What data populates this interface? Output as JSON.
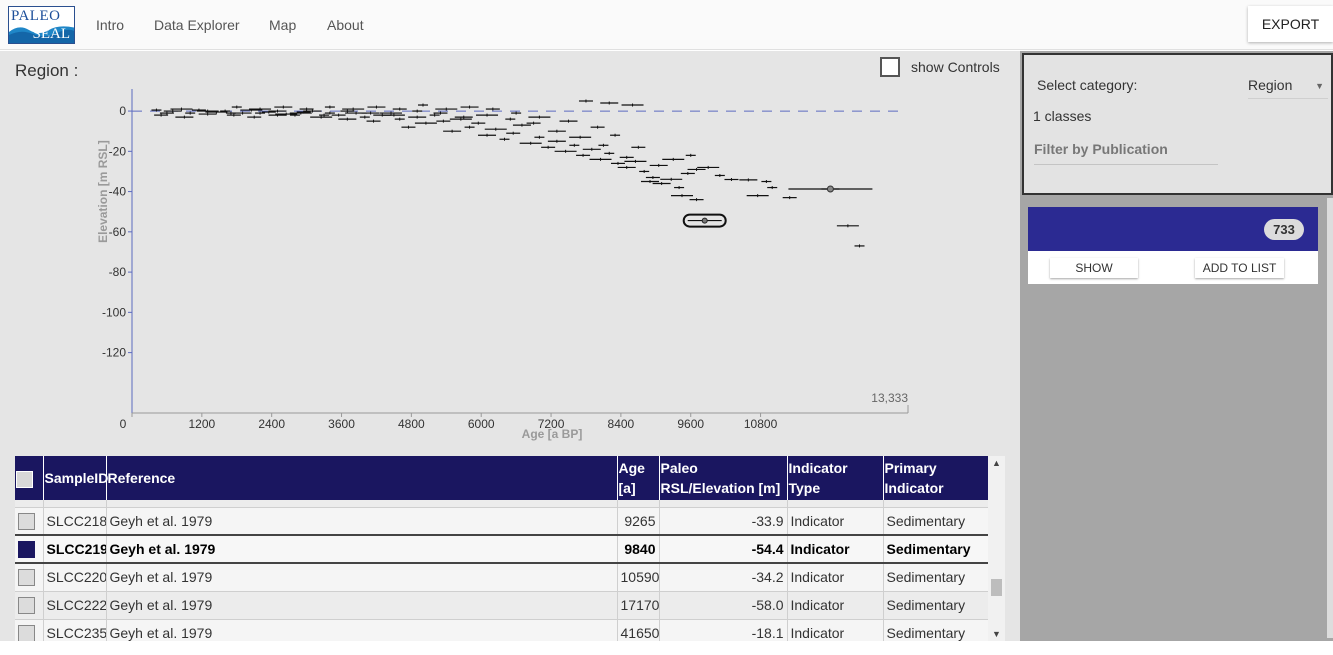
{
  "header": {
    "logo_top": "PALEO",
    "logo_bottom": "SEAL",
    "nav": [
      "Intro",
      "Data Explorer",
      "Map",
      "About"
    ],
    "export_label": "EXPORT"
  },
  "main": {
    "region_title": "Region :",
    "show_controls_label": "show Controls"
  },
  "chart_data": {
    "type": "scatter",
    "xlabel": "Age [a BP]",
    "ylabel": "Elevation [m RSL]",
    "xlim": [
      0,
      13333
    ],
    "ylim": [
      -150,
      5
    ],
    "xticks": [
      0,
      1200,
      2400,
      3600,
      4800,
      6000,
      7200,
      8400,
      9600,
      10800
    ],
    "yticks": [
      0,
      -20,
      -40,
      -60,
      -80,
      -100,
      -120
    ],
    "x_max_label": "13,333",
    "grid": false,
    "reference_line": {
      "y": 0,
      "style": "dashed",
      "color": "#5c6bc0"
    },
    "highlighted_point": {
      "x": 9840,
      "y": -54.4
    },
    "points": [
      [
        420,
        0.5
      ],
      [
        600,
        -1
      ],
      [
        700,
        0
      ],
      [
        850,
        1
      ],
      [
        1000,
        -1
      ],
      [
        1150,
        0.5
      ],
      [
        1300,
        -1.5
      ],
      [
        1450,
        -0.5
      ],
      [
        1600,
        0
      ],
      [
        1750,
        -2
      ],
      [
        1900,
        -1
      ],
      [
        2050,
        0.5
      ],
      [
        2200,
        -1
      ],
      [
        2350,
        -0.5
      ],
      [
        2500,
        0
      ],
      [
        2650,
        -1.5
      ],
      [
        2800,
        -2
      ],
      [
        2950,
        -0.5
      ],
      [
        3100,
        0
      ],
      [
        3250,
        -3
      ],
      [
        3400,
        -1
      ],
      [
        3550,
        -2
      ],
      [
        3700,
        -4
      ],
      [
        3850,
        -1
      ],
      [
        4000,
        -3
      ],
      [
        4150,
        -5
      ],
      [
        4300,
        -2
      ],
      [
        4450,
        -1
      ],
      [
        4600,
        -4
      ],
      [
        4750,
        -8
      ],
      [
        4900,
        -3
      ],
      [
        5050,
        -6
      ],
      [
        5200,
        -2
      ],
      [
        5350,
        -5
      ],
      [
        5500,
        -10
      ],
      [
        5650,
        -4
      ],
      [
        5800,
        -8
      ],
      [
        5950,
        -6
      ],
      [
        6100,
        -12
      ],
      [
        6250,
        -9
      ],
      [
        6400,
        -14
      ],
      [
        6550,
        -11
      ],
      [
        6700,
        -7
      ],
      [
        6850,
        -16
      ],
      [
        7000,
        -13
      ],
      [
        7150,
        -18
      ],
      [
        7300,
        -15
      ],
      [
        7450,
        -20
      ],
      [
        7600,
        -17
      ],
      [
        7750,
        -22
      ],
      [
        7900,
        -19
      ],
      [
        8050,
        -24
      ],
      [
        8200,
        -21
      ],
      [
        8350,
        -26
      ],
      [
        8500,
        -28
      ],
      [
        8650,
        -25
      ],
      [
        8800,
        -30
      ],
      [
        8950,
        -33
      ],
      [
        9100,
        -36
      ],
      [
        9265,
        -33.9
      ],
      [
        9400,
        -38
      ],
      [
        9550,
        -31
      ],
      [
        9700,
        -29
      ],
      [
        9900,
        -28
      ],
      [
        10100,
        -32
      ],
      [
        10300,
        -34
      ],
      [
        10590,
        -34.2
      ],
      [
        10750,
        -42
      ],
      [
        11000,
        -38
      ],
      [
        11300,
        -43
      ],
      [
        12000,
        -38.7
      ],
      [
        12300,
        -57
      ],
      [
        12500,
        -67
      ],
      [
        500,
        -2
      ],
      [
        900,
        -3
      ],
      [
        1300,
        0
      ],
      [
        1700,
        -1
      ],
      [
        2100,
        -3
      ],
      [
        2500,
        -2
      ],
      [
        2900,
        -1
      ],
      [
        3300,
        -2
      ],
      [
        3700,
        0
      ],
      [
        4100,
        -1
      ],
      [
        4500,
        -2
      ],
      [
        4900,
        0
      ],
      [
        5300,
        -1
      ],
      [
        5700,
        -3
      ],
      [
        6100,
        -2
      ],
      [
        6500,
        -4
      ],
      [
        6900,
        -6
      ],
      [
        7300,
        -10
      ],
      [
        7700,
        -13
      ],
      [
        8100,
        -17
      ],
      [
        8500,
        -23
      ],
      [
        8900,
        -35
      ],
      [
        9300,
        -24
      ],
      [
        9600,
        -22
      ],
      [
        8000,
        -8
      ],
      [
        7500,
        -5
      ],
      [
        7000,
        -3
      ],
      [
        6600,
        -1
      ],
      [
        6200,
        1
      ],
      [
        5800,
        2
      ],
      [
        5400,
        1
      ],
      [
        5000,
        3
      ],
      [
        4600,
        1
      ],
      [
        4200,
        2
      ],
      [
        3800,
        1
      ],
      [
        3400,
        2
      ],
      [
        3000,
        1
      ],
      [
        2600,
        2
      ],
      [
        2200,
        1
      ],
      [
        1800,
        2
      ],
      [
        7800,
        5
      ],
      [
        8200,
        4
      ],
      [
        8600,
        3
      ],
      [
        8300,
        -12
      ],
      [
        8700,
        -18
      ],
      [
        9050,
        -27
      ],
      [
        9450,
        -42
      ],
      [
        10900,
        -35
      ],
      [
        9700,
        -44
      ]
    ]
  },
  "table": {
    "headers": {
      "sample_id": "SampleID",
      "reference": "Reference",
      "age_1": "Age",
      "age_2": "[a]",
      "paleo_1": "Paleo",
      "paleo_2": "RSL/Elevation [m]",
      "ind_1": "Indicator",
      "ind_2": "Type",
      "prim_1": "Primary",
      "prim_2": "Indicator"
    },
    "rows": [
      {
        "sample_id": "SLCC218",
        "reference": "Geyh et al. 1979",
        "age": "9265",
        "rsl": "-33.9",
        "indicator_type": "Indicator",
        "primary_indicator": "Sedimentary"
      },
      {
        "sample_id": "SLCC219",
        "reference": "Geyh et al. 1979",
        "age": "9840",
        "rsl": "-54.4",
        "indicator_type": "Indicator",
        "primary_indicator": "Sedimentary"
      },
      {
        "sample_id": "SLCC220",
        "reference": "Geyh et al. 1979",
        "age": "10590",
        "rsl": "-34.2",
        "indicator_type": "Indicator",
        "primary_indicator": "Sedimentary"
      },
      {
        "sample_id": "SLCC222",
        "reference": "Geyh et al. 1979",
        "age": "17170",
        "rsl": "-58.0",
        "indicator_type": "Indicator",
        "primary_indicator": "Sedimentary"
      },
      {
        "sample_id": "SLCC235",
        "reference": "Geyh et al. 1979",
        "age": "41650",
        "rsl": "-18.1",
        "indicator_type": "Indicator",
        "primary_indicator": "Sedimentary"
      }
    ]
  },
  "sidebar": {
    "select_label": "Select category:",
    "select_value": "Region",
    "classes_text": "1 classes",
    "filter_label": "Filter by Publication",
    "class_count": "733",
    "show_label": "SHOW",
    "add_label": "ADD TO LIST",
    "class_color": "#2b2a92"
  }
}
